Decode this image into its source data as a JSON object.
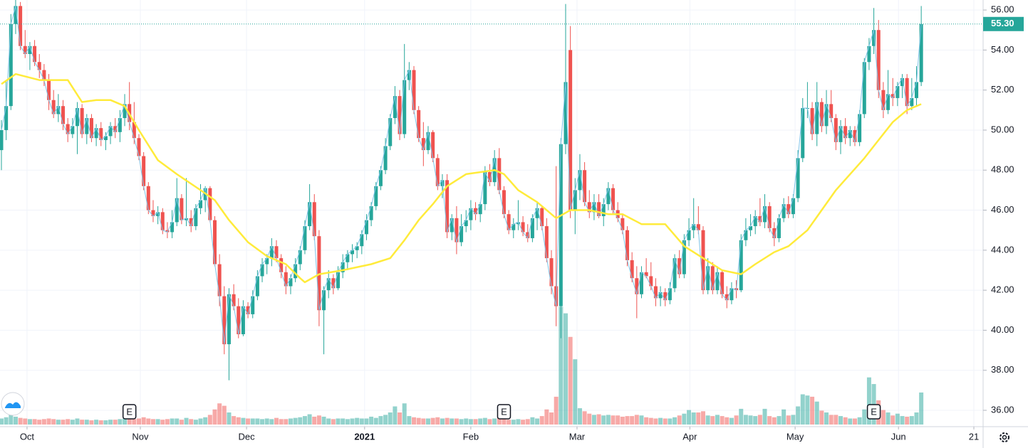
{
  "chart_data": {
    "type": "candlestick",
    "ohlc": [
      [
        49.0,
        50.5,
        48.0,
        50.0
      ],
      [
        50.0,
        52.5,
        49.5,
        51.2
      ],
      [
        51.2,
        55.8,
        51.0,
        55.3
      ],
      [
        55.3,
        56.5,
        54.8,
        56.2
      ],
      [
        56.2,
        56.4,
        54.0,
        54.2
      ],
      [
        54.2,
        55.0,
        53.6,
        53.8
      ],
      [
        53.8,
        54.4,
        53.0,
        54.2
      ],
      [
        54.2,
        54.5,
        53.2,
        53.4
      ],
      [
        53.4,
        53.8,
        52.6,
        53.0
      ],
      [
        53.0,
        53.3,
        52.2,
        52.5
      ],
      [
        52.5,
        52.8,
        51.0,
        51.5
      ],
      [
        51.5,
        52.0,
        50.6,
        50.8
      ],
      [
        50.8,
        51.8,
        50.4,
        51.2
      ],
      [
        51.2,
        51.5,
        50.0,
        50.3
      ],
      [
        50.3,
        50.6,
        49.4,
        49.8
      ],
      [
        49.8,
        50.6,
        49.6,
        50.2
      ],
      [
        50.2,
        51.4,
        48.8,
        51.1
      ],
      [
        51.1,
        51.3,
        49.6,
        49.8
      ],
      [
        49.8,
        50.8,
        49.3,
        50.6
      ],
      [
        50.6,
        50.8,
        49.4,
        49.6
      ],
      [
        49.6,
        50.3,
        49.2,
        50.1
      ],
      [
        50.1,
        50.4,
        49.2,
        49.5
      ],
      [
        49.5,
        49.9,
        49.0,
        49.7
      ],
      [
        49.7,
        50.4,
        49.3,
        50.2
      ],
      [
        50.2,
        50.6,
        49.6,
        49.9
      ],
      [
        49.9,
        51.0,
        49.4,
        50.6
      ],
      [
        50.6,
        51.8,
        50.2,
        51.3
      ],
      [
        51.3,
        52.4,
        50.0,
        50.4
      ],
      [
        50.4,
        51.4,
        49.3,
        49.6
      ],
      [
        49.6,
        49.8,
        48.5,
        48.7
      ],
      [
        48.7,
        48.9,
        47.0,
        47.2
      ],
      [
        47.2,
        47.4,
        45.8,
        46.0
      ],
      [
        46.0,
        46.5,
        45.4,
        45.7
      ],
      [
        45.7,
        46.2,
        45.3,
        45.9
      ],
      [
        45.9,
        46.1,
        44.8,
        45.0
      ],
      [
        45.0,
        45.4,
        44.6,
        44.9
      ],
      [
        44.9,
        46.0,
        44.6,
        45.4
      ],
      [
        45.4,
        47.6,
        45.2,
        46.6
      ],
      [
        46.6,
        46.8,
        45.3,
        45.5
      ],
      [
        45.5,
        47.6,
        45.2,
        45.6
      ],
      [
        45.6,
        46.0,
        44.9,
        45.2
      ],
      [
        45.2,
        46.3,
        45.0,
        46.1
      ],
      [
        46.1,
        47.3,
        45.8,
        46.5
      ],
      [
        46.5,
        47.2,
        45.9,
        47.1
      ],
      [
        47.1,
        47.2,
        45.4,
        45.5
      ],
      [
        45.5,
        45.7,
        43.2,
        43.3
      ],
      [
        43.3,
        43.8,
        41.2,
        41.7
      ],
      [
        41.7,
        42.2,
        38.8,
        39.3
      ],
      [
        39.3,
        42.1,
        37.5,
        41.8
      ],
      [
        41.8,
        42.3,
        41.0,
        41.2
      ],
      [
        41.2,
        41.6,
        39.6,
        39.8
      ],
      [
        39.8,
        41.5,
        39.7,
        41.2
      ],
      [
        41.2,
        41.4,
        40.6,
        40.8
      ],
      [
        40.8,
        42.0,
        40.6,
        41.7
      ],
      [
        41.7,
        43.0,
        41.5,
        42.7
      ],
      [
        42.7,
        43.6,
        42.4,
        43.3
      ],
      [
        43.3,
        43.8,
        42.8,
        43.6
      ],
      [
        43.6,
        44.6,
        43.2,
        44.2
      ],
      [
        44.2,
        44.5,
        43.4,
        43.6
      ],
      [
        43.6,
        43.8,
        42.6,
        42.9
      ],
      [
        42.9,
        43.2,
        41.8,
        42.2
      ],
      [
        42.2,
        42.8,
        41.8,
        42.6
      ],
      [
        42.6,
        43.6,
        42.4,
        43.3
      ],
      [
        43.3,
        44.2,
        43.0,
        44.0
      ],
      [
        44.0,
        45.5,
        43.8,
        45.2
      ],
      [
        45.2,
        47.3,
        45.0,
        46.4
      ],
      [
        46.4,
        46.8,
        44.5,
        44.7
      ],
      [
        44.7,
        45.0,
        40.2,
        41.0
      ],
      [
        41.0,
        42.2,
        38.8,
        42.0
      ],
      [
        42.0,
        43.0,
        41.6,
        42.6
      ],
      [
        42.6,
        42.8,
        41.8,
        42.1
      ],
      [
        42.1,
        43.2,
        42.0,
        42.9
      ],
      [
        42.9,
        43.8,
        42.6,
        43.4
      ],
      [
        43.4,
        44.0,
        43.0,
        43.8
      ],
      [
        43.8,
        44.3,
        43.4,
        44.0
      ],
      [
        44.0,
        44.4,
        43.6,
        44.2
      ],
      [
        44.2,
        45.0,
        43.8,
        44.8
      ],
      [
        44.8,
        45.8,
        44.5,
        45.5
      ],
      [
        45.5,
        46.4,
        45.2,
        46.2
      ],
      [
        46.2,
        47.4,
        46.0,
        47.2
      ],
      [
        47.2,
        48.2,
        47.0,
        48.0
      ],
      [
        48.0,
        49.6,
        47.8,
        49.2
      ],
      [
        49.2,
        50.8,
        49.0,
        50.6
      ],
      [
        50.6,
        52.2,
        50.3,
        51.7
      ],
      [
        51.7,
        52.0,
        49.5,
        49.8
      ],
      [
        49.8,
        54.3,
        49.6,
        52.5
      ],
      [
        52.5,
        53.4,
        52.0,
        53.0
      ],
      [
        53.0,
        53.2,
        50.8,
        51.0
      ],
      [
        51.0,
        51.2,
        49.4,
        49.6
      ],
      [
        49.6,
        50.4,
        48.2,
        49.0
      ],
      [
        49.0,
        50.2,
        48.8,
        49.9
      ],
      [
        49.9,
        50.0,
        48.4,
        48.6
      ],
      [
        48.6,
        48.8,
        47.0,
        47.2
      ],
      [
        47.2,
        47.8,
        46.6,
        47.5
      ],
      [
        47.5,
        47.8,
        44.6,
        44.9
      ],
      [
        44.9,
        45.8,
        44.5,
        45.6
      ],
      [
        45.6,
        46.2,
        43.8,
        44.4
      ],
      [
        44.4,
        45.8,
        44.2,
        45.2
      ],
      [
        45.2,
        46.0,
        44.9,
        45.5
      ],
      [
        45.5,
        46.5,
        45.0,
        46.1
      ],
      [
        46.1,
        46.4,
        45.5,
        45.8
      ],
      [
        45.8,
        46.4,
        45.4,
        46.3
      ],
      [
        46.3,
        48.2,
        46.0,
        47.9
      ],
      [
        47.9,
        48.3,
        47.2,
        47.4
      ],
      [
        47.4,
        49.0,
        47.2,
        48.6
      ],
      [
        48.6,
        49.1,
        46.8,
        47.0
      ],
      [
        47.0,
        47.2,
        45.6,
        45.8
      ],
      [
        45.8,
        46.0,
        44.8,
        45.0
      ],
      [
        45.0,
        45.6,
        44.6,
        45.3
      ],
      [
        45.3,
        46.5,
        45.0,
        45.4
      ],
      [
        45.4,
        45.7,
        44.7,
        44.9
      ],
      [
        44.9,
        45.3,
        44.4,
        44.6
      ],
      [
        44.6,
        45.8,
        44.4,
        45.6
      ],
      [
        45.6,
        46.4,
        45.0,
        46.1
      ],
      [
        46.1,
        46.2,
        45.0,
        45.2
      ],
      [
        45.2,
        45.6,
        43.4,
        43.6
      ],
      [
        43.6,
        44.0,
        41.8,
        42.2
      ],
      [
        42.2,
        48.2,
        40.2,
        41.2
      ],
      [
        41.2,
        49.6,
        39.6,
        49.3
      ],
      [
        49.3,
        56.3,
        48.8,
        52.4
      ],
      [
        54.0,
        55.2,
        45.6,
        46.0
      ],
      [
        46.0,
        47.6,
        44.8,
        47.0
      ],
      [
        47.0,
        48.8,
        46.5,
        48.0
      ],
      [
        48.0,
        48.4,
        46.2,
        46.4
      ],
      [
        46.4,
        47.0,
        45.6,
        45.9
      ],
      [
        45.9,
        46.8,
        45.5,
        46.4
      ],
      [
        46.4,
        46.8,
        45.6,
        45.7
      ],
      [
        45.7,
        46.6,
        45.2,
        46.3
      ],
      [
        46.3,
        47.4,
        46.0,
        47.1
      ],
      [
        47.1,
        47.3,
        45.8,
        46.0
      ],
      [
        46.0,
        46.4,
        45.4,
        45.6
      ],
      [
        45.6,
        45.8,
        44.8,
        45.0
      ],
      [
        45.0,
        45.2,
        43.2,
        43.5
      ],
      [
        43.5,
        43.9,
        42.4,
        42.6
      ],
      [
        42.6,
        43.2,
        40.6,
        41.8
      ],
      [
        41.8,
        43.2,
        41.6,
        42.9
      ],
      [
        42.9,
        43.6,
        42.6,
        42.7
      ],
      [
        42.7,
        43.4,
        42.0,
        42.2
      ],
      [
        42.2,
        42.6,
        41.2,
        41.6
      ],
      [
        41.6,
        42.2,
        41.2,
        41.9
      ],
      [
        41.9,
        42.1,
        41.2,
        41.5
      ],
      [
        41.5,
        42.4,
        41.3,
        42.1
      ],
      [
        42.1,
        43.8,
        41.9,
        43.6
      ],
      [
        43.6,
        44.0,
        42.6,
        42.8
      ],
      [
        42.8,
        44.8,
        42.6,
        44.5
      ],
      [
        44.5,
        45.6,
        44.2,
        45.0
      ],
      [
        45.0,
        46.6,
        44.6,
        45.3
      ],
      [
        45.3,
        46.2,
        44.8,
        45.0
      ],
      [
        45.0,
        45.2,
        41.8,
        42.0
      ],
      [
        42.0,
        43.6,
        41.8,
        43.2
      ],
      [
        43.2,
        43.4,
        41.8,
        42.0
      ],
      [
        42.0,
        43.2,
        41.8,
        42.9
      ],
      [
        42.9,
        43.0,
        41.6,
        41.8
      ],
      [
        41.8,
        42.2,
        41.1,
        41.5
      ],
      [
        41.5,
        42.4,
        41.3,
        42.1
      ],
      [
        42.1,
        42.5,
        41.6,
        42.0
      ],
      [
        42.0,
        44.8,
        41.9,
        44.5
      ],
      [
        44.5,
        45.6,
        44.2,
        45.0
      ],
      [
        45.0,
        45.8,
        44.7,
        45.2
      ],
      [
        45.2,
        46.0,
        44.8,
        45.7
      ],
      [
        45.7,
        46.6,
        45.2,
        45.4
      ],
      [
        45.4,
        46.8,
        45.1,
        46.2
      ],
      [
        46.2,
        46.4,
        44.9,
        45.1
      ],
      [
        45.1,
        45.4,
        44.2,
        44.6
      ],
      [
        44.6,
        45.8,
        44.4,
        45.6
      ],
      [
        45.6,
        46.6,
        45.4,
        46.3
      ],
      [
        46.3,
        46.7,
        45.6,
        45.8
      ],
      [
        45.8,
        46.8,
        45.6,
        46.6
      ],
      [
        46.6,
        49.0,
        46.4,
        48.6
      ],
      [
        48.6,
        51.6,
        48.4,
        51.1
      ],
      [
        51.1,
        52.4,
        50.6,
        51.1
      ],
      [
        51.1,
        51.4,
        49.5,
        49.8
      ],
      [
        49.8,
        52.4,
        49.2,
        51.4
      ],
      [
        51.4,
        51.6,
        49.9,
        50.2
      ],
      [
        50.2,
        52.0,
        49.8,
        51.3
      ],
      [
        51.3,
        52.0,
        50.4,
        50.6
      ],
      [
        50.6,
        50.8,
        49.0,
        49.4
      ],
      [
        49.4,
        50.5,
        48.8,
        50.2
      ],
      [
        50.2,
        50.6,
        49.3,
        49.6
      ],
      [
        49.6,
        50.2,
        49.2,
        50.0
      ],
      [
        50.0,
        50.2,
        49.2,
        49.4
      ],
      [
        49.4,
        51.0,
        49.2,
        50.8
      ],
      [
        50.8,
        53.6,
        50.6,
        53.4
      ],
      [
        53.4,
        54.6,
        53.0,
        54.2
      ],
      [
        54.2,
        56.1,
        53.8,
        55.0
      ],
      [
        55.0,
        55.5,
        51.6,
        52.0
      ],
      [
        52.0,
        52.4,
        50.6,
        51.0
      ],
      [
        51.0,
        53.0,
        50.8,
        51.8
      ],
      [
        51.8,
        52.6,
        51.2,
        51.6
      ],
      [
        51.6,
        52.4,
        51.2,
        52.2
      ],
      [
        52.2,
        52.8,
        51.6,
        52.6
      ],
      [
        52.6,
        52.8,
        50.8,
        51.2
      ],
      [
        51.2,
        52.6,
        51.0,
        51.6
      ],
      [
        51.6,
        53.2,
        51.2,
        52.4
      ],
      [
        52.4,
        56.2,
        52.2,
        55.3
      ]
    ],
    "volume": [
      1.0,
      1.2,
      1.6,
      1.3,
      1.1,
      1.0,
      0.9,
      0.9,
      0.8,
      0.9,
      1.0,
      0.9,
      0.8,
      0.8,
      0.9,
      0.8,
      1.0,
      0.8,
      0.8,
      0.7,
      0.8,
      0.7,
      0.7,
      0.8,
      0.8,
      0.9,
      1.0,
      1.1,
      0.9,
      1.0,
      1.2,
      1.0,
      0.9,
      0.9,
      0.8,
      0.9,
      1.0,
      1.0,
      0.8,
      1.1,
      0.9,
      0.8,
      1.0,
      1.2,
      1.6,
      2.5,
      3.5,
      3.1,
      2.0,
      1.4,
      1.2,
      1.1,
      1.0,
      1.0,
      1.0,
      0.9,
      1.0,
      0.9,
      1.1,
      0.9,
      0.9,
      1.0,
      1.1,
      1.2,
      1.4,
      1.7,
      1.3,
      1.5,
      1.3,
      1.0,
      0.9,
      1.0,
      1.0,
      0.9,
      1.0,
      1.1,
      1.0,
      1.0,
      1.3,
      1.1,
      1.4,
      1.6,
      2.0,
      3.0,
      2.0,
      3.5,
      1.4,
      1.2,
      1.1,
      1.0,
      1.0,
      1.1,
      1.2,
      1.0,
      1.1,
      1.0,
      1.0,
      0.9,
      1.0,
      0.9,
      0.9,
      1.0,
      1.1,
      0.9,
      1.0,
      1.1,
      0.9,
      0.8,
      0.8,
      0.9,
      0.8,
      0.9,
      1.2,
      1.0,
      1.4,
      2.5,
      2.0,
      4.6,
      19.5,
      18.4,
      14.5,
      10.8,
      2.7,
      2.2,
      1.8,
      1.6,
      1.7,
      1.5,
      1.6,
      1.5,
      1.5,
      1.3,
      1.4,
      1.4,
      1.6,
      1.5,
      1.2,
      1.1,
      1.0,
      1.1,
      1.0,
      1.0,
      1.2,
      1.5,
      1.8,
      2.4,
      2.0,
      2.0,
      2.2,
      1.5,
      1.4,
      1.6,
      1.4,
      1.2,
      1.1,
      1.5,
      2.6,
      1.6,
      1.5,
      1.4,
      1.6,
      2.6,
      1.4,
      1.2,
      1.4,
      2.5,
      1.5,
      1.6,
      3.0,
      5.0,
      4.8,
      4.6,
      3.8,
      2.3,
      2.0,
      1.6,
      1.6,
      1.4,
      1.2,
      1.0,
      1.0,
      1.2,
      2.5,
      7.8,
      6.7,
      4.0,
      2.4,
      2.0,
      1.5,
      1.8,
      1.4,
      1.3,
      1.4,
      2.0,
      5.3
    ],
    "volume_max": 20,
    "up_color": "#26a69a",
    "down_color": "#ef5350",
    "moving_average": {
      "color": "#ffeb3b",
      "x": [
        0,
        3,
        8,
        14,
        17,
        20,
        23,
        26,
        29,
        33,
        37,
        42,
        45,
        48,
        52,
        56,
        60,
        63,
        64,
        67,
        72,
        78,
        82,
        85,
        88,
        91,
        94,
        98,
        104,
        106,
        109,
        113,
        117,
        120,
        124,
        128,
        131,
        135,
        140,
        144,
        148,
        152,
        156,
        159,
        163,
        166,
        170,
        173,
        176,
        179,
        182,
        185,
        188,
        191,
        194
      ],
      "values": [
        52.3,
        52.8,
        52.5,
        52.5,
        51.4,
        51.5,
        51.5,
        51.2,
        50.0,
        48.5,
        47.8,
        47.0,
        46.5,
        45.5,
        44.4,
        43.7,
        43.3,
        42.6,
        42.4,
        42.8,
        43.0,
        43.3,
        43.6,
        44.5,
        45.5,
        46.3,
        47.2,
        47.8,
        48.0,
        47.8,
        47.0,
        46.4,
        45.6,
        46.0,
        46.0,
        45.8,
        45.8,
        45.3,
        45.3,
        44.2,
        43.6,
        43.0,
        42.8,
        43.3,
        43.9,
        44.2,
        45.0,
        46.0,
        47.0,
        47.8,
        48.6,
        49.5,
        50.4,
        51.0,
        51.3
      ]
    },
    "events": [
      {
        "x": 27,
        "label": "E"
      },
      {
        "x": 106,
        "label": "E"
      },
      {
        "x": 184,
        "label": "E"
      }
    ],
    "last_price": {
      "value": 55.3,
      "label": "55.30"
    },
    "xlim": [
      -0.3,
      206.3
    ],
    "xticks": [
      {
        "value": 5.4,
        "label": "Oct"
      },
      {
        "value": 29.3,
        "label": "Nov"
      },
      {
        "value": 51.7,
        "label": "Dec"
      },
      {
        "value": 76.6,
        "label": "2021",
        "bold": true
      },
      {
        "value": 99.0,
        "label": "Feb"
      },
      {
        "value": 121.4,
        "label": "Mar"
      },
      {
        "value": 145.2,
        "label": "Apr"
      },
      {
        "value": 167.4,
        "label": "May"
      },
      {
        "value": 189.2,
        "label": "Jun"
      },
      {
        "value": 205.1,
        "label": "21"
      }
    ],
    "ylim": [
      36,
      56.5
    ],
    "yticks": [
      {
        "value": 36,
        "label": "36.00"
      },
      {
        "value": 38,
        "label": "38.00"
      },
      {
        "value": 40,
        "label": "40.00"
      },
      {
        "value": 42,
        "label": "42.00"
      },
      {
        "value": 44,
        "label": "44.00"
      },
      {
        "value": 46,
        "label": "46.00"
      },
      {
        "value": 48,
        "label": "48.00"
      },
      {
        "value": 50,
        "label": "50.00"
      },
      {
        "value": 52,
        "label": "52.00"
      },
      {
        "value": 54,
        "label": "54.00"
      },
      {
        "value": 56,
        "label": "56.00"
      }
    ],
    "grid": true
  }
}
